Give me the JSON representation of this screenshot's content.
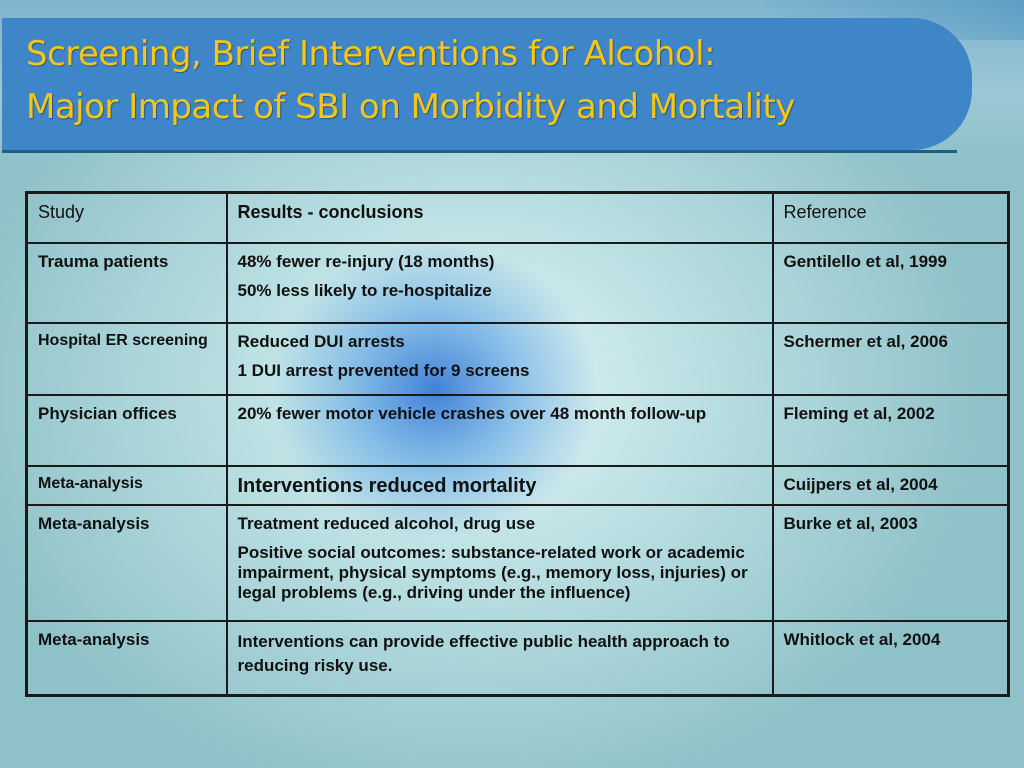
{
  "slide": {
    "title_line1": "Screening, Brief Interventions for Alcohol:",
    "title_line2": "Major Impact of SBI on Morbidity and Mortality"
  },
  "table": {
    "headers": [
      "Study",
      "Results - conclusions",
      "Reference"
    ],
    "rows": [
      {
        "study": "Trauma patients",
        "results": [
          "48% fewer re-injury (18 months)",
          "50% less likely to re-hospitalize"
        ],
        "reference": "Gentilello et al, 1999"
      },
      {
        "study": "Hospital ER screening",
        "results": [
          "Reduced DUI arrests",
          "1 DUI arrest prevented for 9 screens"
        ],
        "reference": "Schermer et al, 2006"
      },
      {
        "study": "Physician offices",
        "results": [
          "20% fewer motor vehicle crashes over 48 month follow-up"
        ],
        "reference": "Fleming et al, 2002"
      },
      {
        "study": "Meta-analysis",
        "results": [
          "Interventions reduced mortality"
        ],
        "reference": "Cuijpers et al, 2004"
      },
      {
        "study": "Meta-analysis",
        "results": [
          "Treatment reduced alcohol, drug use",
          "Positive social outcomes: substance-related work or academic impairment, physical symptoms (e.g., memory loss, injuries) or legal problems (e.g., driving under the influence)"
        ],
        "reference": "Burke et al, 2003"
      },
      {
        "study": "Meta-analysis",
        "results": [
          "Interventions can provide effective public health approach to reducing risky use."
        ],
        "reference": "Whitlock et al, 2004"
      }
    ]
  },
  "colors": {
    "title_text": "#f5c518",
    "title_bar": "#3f86c9",
    "glow": "#256ed2"
  }
}
